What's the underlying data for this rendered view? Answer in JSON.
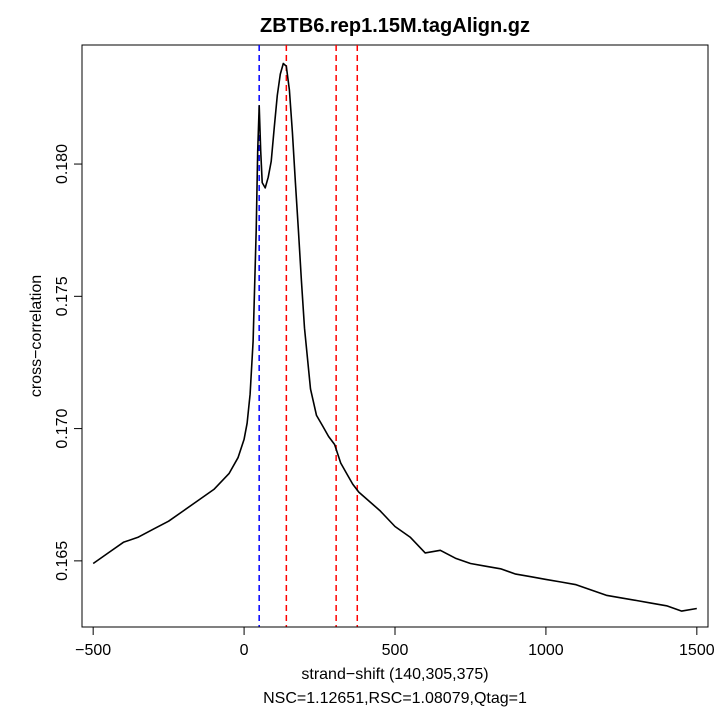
{
  "chart_data": {
    "type": "line",
    "title": "ZBTB6.rep1.15M.tagAlign.gz",
    "xlabel": "strand−shift (140,305,375)",
    "subtitle": "NSC=1.12651,RSC=1.08079,Qtag=1",
    "ylabel": "cross−correlation",
    "xlim": [
      -537,
      1537
    ],
    "ylim": [
      0.1625,
      0.1845
    ],
    "x_ticks": [
      -500,
      0,
      500,
      1000,
      1500
    ],
    "x_tick_labels": [
      "−500",
      "0",
      "500",
      "1000",
      "1500"
    ],
    "y_ticks": [
      0.165,
      0.17,
      0.175,
      0.18
    ],
    "y_tick_labels": [
      "0.165",
      "0.170",
      "0.175",
      "0.180"
    ],
    "grid": false,
    "series": [
      {
        "color": "#000000",
        "x": [
          -500,
          -450,
          -400,
          -350,
          -300,
          -250,
          -200,
          -150,
          -100,
          -50,
          -20,
          0,
          10,
          20,
          30,
          40,
          45,
          50,
          55,
          60,
          70,
          80,
          90,
          100,
          110,
          120,
          130,
          140,
          150,
          160,
          170,
          180,
          190,
          200,
          220,
          240,
          260,
          280,
          300,
          320,
          340,
          360,
          380,
          400,
          450,
          500,
          550,
          600,
          650,
          700,
          750,
          800,
          850,
          900,
          950,
          1000,
          1050,
          1100,
          1150,
          1200,
          1250,
          1300,
          1350,
          1400,
          1450,
          1500
        ],
        "y": [
          0.1649,
          0.1653,
          0.1657,
          0.1659,
          0.1662,
          0.1665,
          0.1669,
          0.1673,
          0.1677,
          0.1683,
          0.1689,
          0.1696,
          0.1702,
          0.1713,
          0.1733,
          0.1775,
          0.1805,
          0.1822,
          0.1805,
          0.1793,
          0.1791,
          0.1795,
          0.1801,
          0.1814,
          0.1826,
          0.1834,
          0.1838,
          0.1837,
          0.1828,
          0.1812,
          0.1793,
          0.1775,
          0.1756,
          0.1738,
          0.1715,
          0.1705,
          0.1701,
          0.1697,
          0.1694,
          0.1687,
          0.1683,
          0.1679,
          0.1676,
          0.1674,
          0.1669,
          0.1663,
          0.1659,
          0.1653,
          0.1654,
          0.1651,
          0.1649,
          0.1648,
          0.1647,
          0.1645,
          0.1644,
          0.1643,
          0.1642,
          0.1641,
          0.1639,
          0.1637,
          0.1636,
          0.1635,
          0.1634,
          0.1633,
          0.1631,
          0.1632
        ]
      }
    ],
    "vlines": [
      {
        "x": 50,
        "color": "#0000ff",
        "style": "dashed"
      },
      {
        "x": 140,
        "color": "#ff0000",
        "style": "dashed"
      },
      {
        "x": 305,
        "color": "#ff0000",
        "style": "dashed"
      },
      {
        "x": 375,
        "color": "#ff0000",
        "style": "dashed"
      }
    ]
  }
}
